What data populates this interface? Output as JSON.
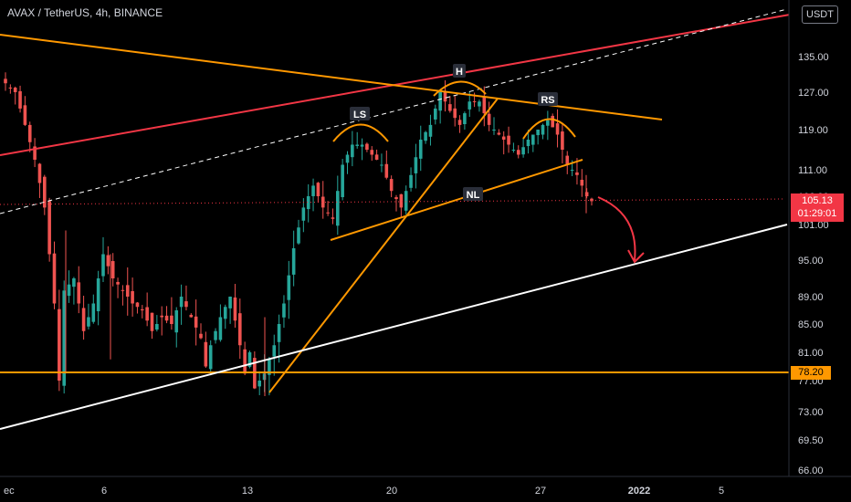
{
  "title": "AVAX / TetherUS, 4h, BINANCE",
  "currency_button": "USDT",
  "price_tag": {
    "price": "105.13",
    "countdown": "01:29:01",
    "color": "#f23645"
  },
  "level_tag": {
    "value": "78.20",
    "color": "#ff9800"
  },
  "pattern_labels": {
    "ls": "LS",
    "h": "H",
    "rs": "RS",
    "nl": "NL"
  },
  "colors": {
    "up": "#26a69a",
    "down": "#ef5350",
    "orange": "#ff9800",
    "red": "#f23645",
    "white": "#ffffff"
  },
  "chart_data": {
    "type": "candlestick",
    "title": "AVAX / TetherUS, 4h, BINANCE",
    "y_ticks": [
      66.0,
      69.5,
      73.0,
      77.0,
      81.0,
      85.0,
      89.0,
      95.0,
      101.0,
      106.0,
      111.0,
      119.0,
      127.0,
      135.0
    ],
    "y_tick_labels": [
      "66.00",
      "69.50",
      "73.00",
      "77.00",
      "81.00",
      "85.00",
      "89.00",
      "95.00",
      "101.00",
      "106.00",
      "111.00",
      "119.00",
      "127.00",
      "135.00"
    ],
    "x_ticks": [
      "ec",
      "6",
      "13",
      "20",
      "27",
      "2022",
      "5"
    ],
    "last_price": 105.13,
    "horizontal_level": 78.2,
    "price_path": [
      [
        0,
        129
      ],
      [
        2,
        127
      ],
      [
        4,
        120
      ],
      [
        6,
        113
      ],
      [
        8,
        104
      ],
      [
        10,
        88
      ],
      [
        11,
        77
      ],
      [
        12,
        90
      ],
      [
        14,
        92
      ],
      [
        16,
        84
      ],
      [
        18,
        88
      ],
      [
        20,
        96
      ],
      [
        22,
        92
      ],
      [
        24,
        90
      ],
      [
        26,
        88
      ],
      [
        28,
        87
      ],
      [
        30,
        84
      ],
      [
        32,
        86
      ],
      [
        34,
        85
      ],
      [
        36,
        89
      ],
      [
        38,
        86
      ],
      [
        40,
        83
      ],
      [
        41,
        79
      ],
      [
        42,
        82
      ],
      [
        44,
        86
      ],
      [
        46,
        89
      ],
      [
        48,
        82
      ],
      [
        49,
        78
      ],
      [
        50,
        81
      ],
      [
        51,
        76
      ],
      [
        53,
        78
      ],
      [
        55,
        82
      ],
      [
        57,
        88
      ],
      [
        59,
        97
      ],
      [
        61,
        104
      ],
      [
        63,
        108
      ],
      [
        65,
        104
      ],
      [
        67,
        102
      ],
      [
        69,
        112
      ],
      [
        71,
        116
      ],
      [
        73,
        116
      ],
      [
        75,
        114
      ],
      [
        77,
        112
      ],
      [
        79,
        107
      ],
      [
        81,
        104
      ],
      [
        83,
        110
      ],
      [
        85,
        117
      ],
      [
        87,
        120
      ],
      [
        89,
        127
      ],
      [
        91,
        123
      ],
      [
        93,
        120
      ],
      [
        95,
        125
      ],
      [
        97,
        125
      ],
      [
        99,
        120
      ],
      [
        101,
        118
      ],
      [
        103,
        116
      ],
      [
        105,
        114
      ],
      [
        107,
        117
      ],
      [
        109,
        119
      ],
      [
        111,
        121
      ],
      [
        113,
        118
      ],
      [
        115,
        112
      ],
      [
        117,
        110
      ],
      [
        119,
        106
      ],
      [
        120,
        105.13
      ]
    ]
  }
}
